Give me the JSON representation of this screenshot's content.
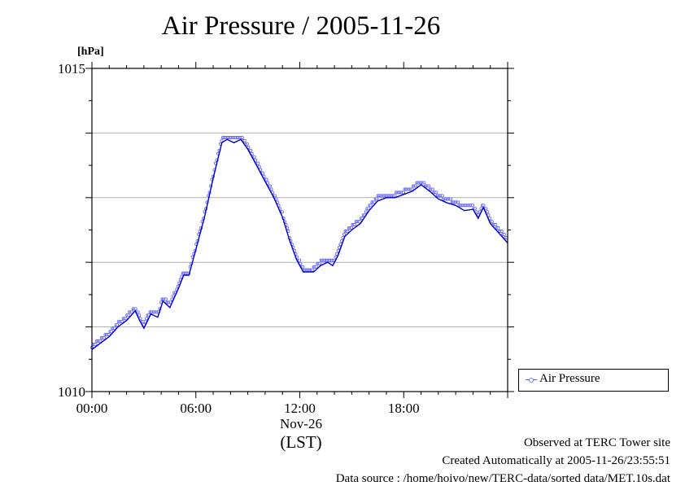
{
  "chart_data": {
    "type": "line",
    "title": "Air Pressure / 2005-11-26",
    "ylabel": "[hPa]",
    "ylim": [
      1010,
      1015
    ],
    "y_ticks": [
      "1010",
      "1015"
    ],
    "y_gridlines": [
      1011,
      1012,
      1013,
      1014
    ],
    "xlim": [
      0,
      24
    ],
    "x_ticks": [
      {
        "hour": 0,
        "label": "00:00"
      },
      {
        "hour": 6,
        "label": "06:00"
      },
      {
        "hour": 12,
        "label": "12:00"
      },
      {
        "hour": 18,
        "label": "18:00"
      }
    ],
    "date_label": "Nov-26",
    "timezone_label": "(LST)",
    "grid": true,
    "legend": "right",
    "series": [
      {
        "name": "Air Pressure",
        "color": "#0000cc",
        "marker_color": "#6a6aff",
        "points": [
          [
            0.0,
            1010.65
          ],
          [
            0.5,
            1010.75
          ],
          [
            1.0,
            1010.85
          ],
          [
            1.5,
            1011.0
          ],
          [
            2.0,
            1011.1
          ],
          [
            2.5,
            1011.25
          ],
          [
            2.75,
            1011.1
          ],
          [
            3.0,
            1010.98
          ],
          [
            3.4,
            1011.2
          ],
          [
            3.8,
            1011.15
          ],
          [
            4.1,
            1011.4
          ],
          [
            4.5,
            1011.3
          ],
          [
            5.0,
            1011.6
          ],
          [
            5.3,
            1011.8
          ],
          [
            5.6,
            1011.8
          ],
          [
            6.0,
            1012.2
          ],
          [
            6.5,
            1012.7
          ],
          [
            7.0,
            1013.3
          ],
          [
            7.5,
            1013.85
          ],
          [
            7.8,
            1013.9
          ],
          [
            8.2,
            1013.85
          ],
          [
            8.6,
            1013.9
          ],
          [
            9.0,
            1013.75
          ],
          [
            9.5,
            1013.5
          ],
          [
            10.0,
            1013.25
          ],
          [
            10.5,
            1013.0
          ],
          [
            11.0,
            1012.7
          ],
          [
            11.4,
            1012.35
          ],
          [
            11.8,
            1012.05
          ],
          [
            12.2,
            1011.85
          ],
          [
            12.8,
            1011.85
          ],
          [
            13.2,
            1011.95
          ],
          [
            13.6,
            1012.0
          ],
          [
            13.9,
            1011.95
          ],
          [
            14.2,
            1012.1
          ],
          [
            14.6,
            1012.4
          ],
          [
            15.0,
            1012.5
          ],
          [
            15.5,
            1012.6
          ],
          [
            16.0,
            1012.8
          ],
          [
            16.5,
            1012.95
          ],
          [
            17.0,
            1013.0
          ],
          [
            17.5,
            1013.0
          ],
          [
            18.0,
            1013.05
          ],
          [
            18.5,
            1013.1
          ],
          [
            19.0,
            1013.2
          ],
          [
            19.5,
            1013.1
          ],
          [
            20.0,
            1012.98
          ],
          [
            20.5,
            1012.92
          ],
          [
            21.0,
            1012.88
          ],
          [
            21.5,
            1012.8
          ],
          [
            22.0,
            1012.82
          ],
          [
            22.3,
            1012.68
          ],
          [
            22.6,
            1012.85
          ],
          [
            23.0,
            1012.6
          ],
          [
            23.5,
            1012.45
          ],
          [
            24.0,
            1012.3
          ]
        ]
      }
    ]
  },
  "legend": {
    "label": "Air Pressure"
  },
  "footer": {
    "line1": "Observed at TERC Tower site",
    "line2": "Created Automatically at 2005-11-26/23:55:51",
    "line3": "Data source : /home/hoivo/new/TERC-data/sorted  data/MET.10s.dat"
  }
}
